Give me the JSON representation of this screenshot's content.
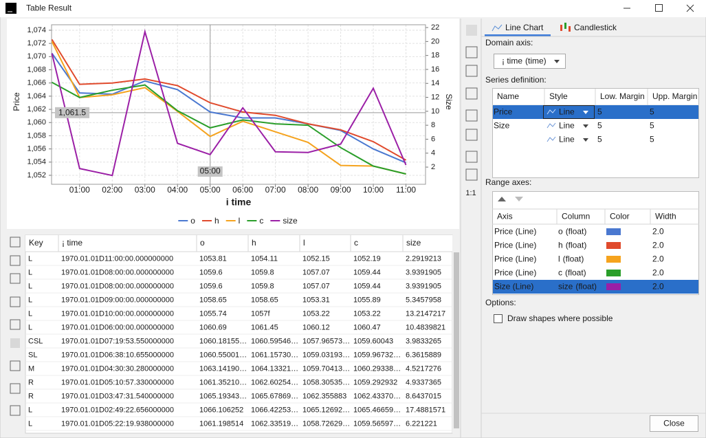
{
  "window": {
    "title": "Table Result"
  },
  "chart_data": {
    "type": "line",
    "x_label": "i time",
    "y_label": "Price",
    "y2_label": "Size",
    "x": [
      0.15,
      1,
      2,
      3,
      4,
      5,
      6,
      7,
      8,
      9,
      10,
      11
    ],
    "xlim": [
      0.14,
      11.6
    ],
    "xticks": [
      {
        "value": 1,
        "label": "01:00"
      },
      {
        "value": 2,
        "label": "02:00"
      },
      {
        "value": 3,
        "label": "03:00"
      },
      {
        "value": 4,
        "label": "04:00"
      },
      {
        "value": 5,
        "label": "05:00"
      },
      {
        "value": 6,
        "label": "06:00"
      },
      {
        "value": 7,
        "label": "07:00"
      },
      {
        "value": 8,
        "label": "08:00"
      },
      {
        "value": 9,
        "label": "09:00"
      },
      {
        "value": 10,
        "label": "10:00"
      },
      {
        "value": 11,
        "label": "11:00"
      }
    ],
    "ylim": [
      1050.64,
      1074.83
    ],
    "yticks": [
      {
        "value": 1052,
        "label": "1,052"
      },
      {
        "value": 1054,
        "label": "1,054"
      },
      {
        "value": 1056,
        "label": "1,056"
      },
      {
        "value": 1058,
        "label": "1,058"
      },
      {
        "value": 1060,
        "label": "1,060"
      },
      {
        "value": 1062,
        "label": "1,062"
      },
      {
        "value": 1064,
        "label": "1,064"
      },
      {
        "value": 1066,
        "label": "1,066"
      },
      {
        "value": 1068,
        "label": "1,068"
      },
      {
        "value": 1070,
        "label": "1,070"
      },
      {
        "value": 1072,
        "label": "1,072"
      },
      {
        "value": 1074,
        "label": "1,074"
      }
    ],
    "y2lim": [
      -0.46,
      22.4
    ],
    "y2ticks": [
      2,
      4,
      6,
      8,
      10,
      12,
      14,
      16,
      18,
      20,
      22
    ],
    "grid": true,
    "legend": "bottom",
    "crosshair": {
      "y": {
        "value": 1061.5,
        "label": "1,061.5"
      },
      "x": {
        "value": 5,
        "label": "05:00"
      }
    },
    "series": [
      {
        "name": "o",
        "color": "#4a78d0",
        "values": [
          1070.5,
          1064.5,
          1064.3,
          1066.3,
          1065.0,
          1061.6,
          1060.7,
          1060.7,
          1059.8,
          1058.8,
          1056.0,
          1053.9
        ]
      },
      {
        "name": "h",
        "color": "#e04a2c",
        "values": [
          1072.6,
          1065.8,
          1066.0,
          1066.6,
          1065.6,
          1063.0,
          1061.6,
          1061.1,
          1059.8,
          1058.9,
          1057.1,
          1054.3
        ]
      },
      {
        "name": "l",
        "color": "#f5a31e",
        "values": [
          1072.3,
          1063.8,
          1064.2,
          1065.3,
          1061.7,
          1057.9,
          1060.2,
          1058.6,
          1057.0,
          1053.5,
          1053.4,
          1052.2
        ]
      },
      {
        "name": "c",
        "color": "#2a9e2a",
        "values": [
          1066.1,
          1063.8,
          1064.9,
          1065.7,
          1061.8,
          1059.2,
          1060.4,
          1059.8,
          1059.6,
          1056.2,
          1053.4,
          1052.2
        ]
      },
      {
        "name": "size",
        "color": "#9b1fa6",
        "axis": "y2",
        "values": [
          18.3,
          1.8,
          0.8,
          21.4,
          5.4,
          3.8,
          10.5,
          4.2,
          4.1,
          5.3,
          13.3,
          2.3
        ]
      }
    ]
  },
  "data_table": {
    "columns": [
      "Key",
      "¡ time",
      "o",
      "h",
      "l",
      "c",
      "size"
    ],
    "rows": [
      [
        "L",
        "1970.01.01D11:00:00.000000000",
        "1053.81",
        "1054.11",
        "1052.15",
        "1052.19",
        "2.2919213"
      ],
      [
        "L",
        "1970.01.01D08:00:00.000000000",
        "1059.6",
        "1059.8",
        "1057.07",
        "1059.44",
        "3.9391905"
      ],
      [
        "L",
        "1970.01.01D08:00:00.000000000",
        "1059.6",
        "1059.8",
        "1057.07",
        "1059.44",
        "3.9391905"
      ],
      [
        "L",
        "1970.01.01D09:00:00.000000000",
        "1058.65",
        "1058.65",
        "1053.31",
        "1055.89",
        "5.3457958"
      ],
      [
        "L",
        "1970.01.01D10:00:00.000000000",
        "1055.74",
        "1057f",
        "1053.22",
        "1053.22",
        "13.2147217"
      ],
      [
        "L",
        "1970.01.01D06:00:00.000000000",
        "1060.69",
        "1061.45",
        "1060.12",
        "1060.47",
        "10.4839821"
      ],
      [
        "CSL",
        "1970.01.01D07:19:53.550000000",
        "1060.18155…",
        "1060.59546…",
        "1057.96573…",
        "1059.60043",
        "3.9833265"
      ],
      [
        "SL",
        "1970.01.01D06:38:10.655000000",
        "1060.55001…",
        "1061.15730…",
        "1059.03193…",
        "1059.96732…",
        "6.3615889"
      ],
      [
        "M",
        "1970.01.01D04:30:30.280000000",
        "1063.14190…",
        "1064.13321…",
        "1059.70413…",
        "1060.29338…",
        "4.5217276"
      ],
      [
        "R",
        "1970.01.01D05:10:57.330000000",
        "1061.35210…",
        "1062.60254…",
        "1058.30535…",
        "1059.292932",
        "4.9337365"
      ],
      [
        "R",
        "1970.01.01D03:47:31.540000000",
        "1065.19343…",
        "1065.67869…",
        "1062.355883",
        "1062.43370…",
        "8.6437015"
      ],
      [
        "L",
        "1970.01.01D02:49:22.656000000",
        "1066.106252",
        "1066.42253…",
        "1065.12692…",
        "1065.46659…",
        "17.4881571"
      ],
      [
        "L",
        "1970.01.01D05:22:19.938000000",
        "1061.198514",
        "1062.33519…",
        "1058.72629…",
        "1059.56597…",
        "6.221221"
      ]
    ]
  },
  "toolbar": {
    "reset_zoom": "1:1"
  },
  "panel": {
    "tabs": [
      "Line Chart",
      "Candlestick"
    ],
    "domain_axis_label": "Domain axis:",
    "domain_axis": {
      "name": "¡ time",
      "type": "(time)"
    },
    "series_definition_label": "Series definition:",
    "series_definition": {
      "columns": [
        "Name",
        "Style",
        "Low. Margin",
        "Upp. Margin"
      ],
      "rows": [
        {
          "name": "Price",
          "style": "Line",
          "low": 5,
          "upp": 5
        },
        {
          "name": "Size",
          "style": "Line",
          "low": 5,
          "upp": 5
        },
        {
          "style": "Line",
          "low": 5,
          "upp": 5
        }
      ]
    },
    "range_axes_label": "Range axes:",
    "range_axes": {
      "columns": [
        "Axis",
        "Column",
        "Color",
        "Width"
      ],
      "rows": [
        {
          "axis": "Price (Line)",
          "column": "o",
          "type": "(float)",
          "width": "2.0"
        },
        {
          "axis": "Price (Line)",
          "column": "h",
          "type": "(float)",
          "width": "2.0"
        },
        {
          "axis": "Price (Line)",
          "column": "l",
          "type": "(float)",
          "width": "2.0"
        },
        {
          "axis": "Price (Line)",
          "column": "c",
          "type": "(float)",
          "width": "2.0"
        },
        {
          "axis": "Size (Line)",
          "column": "size",
          "type": "(float)",
          "width": "2.0"
        }
      ]
    },
    "options_label": "Options:",
    "option": "Draw shapes where possible",
    "close": "Close"
  }
}
